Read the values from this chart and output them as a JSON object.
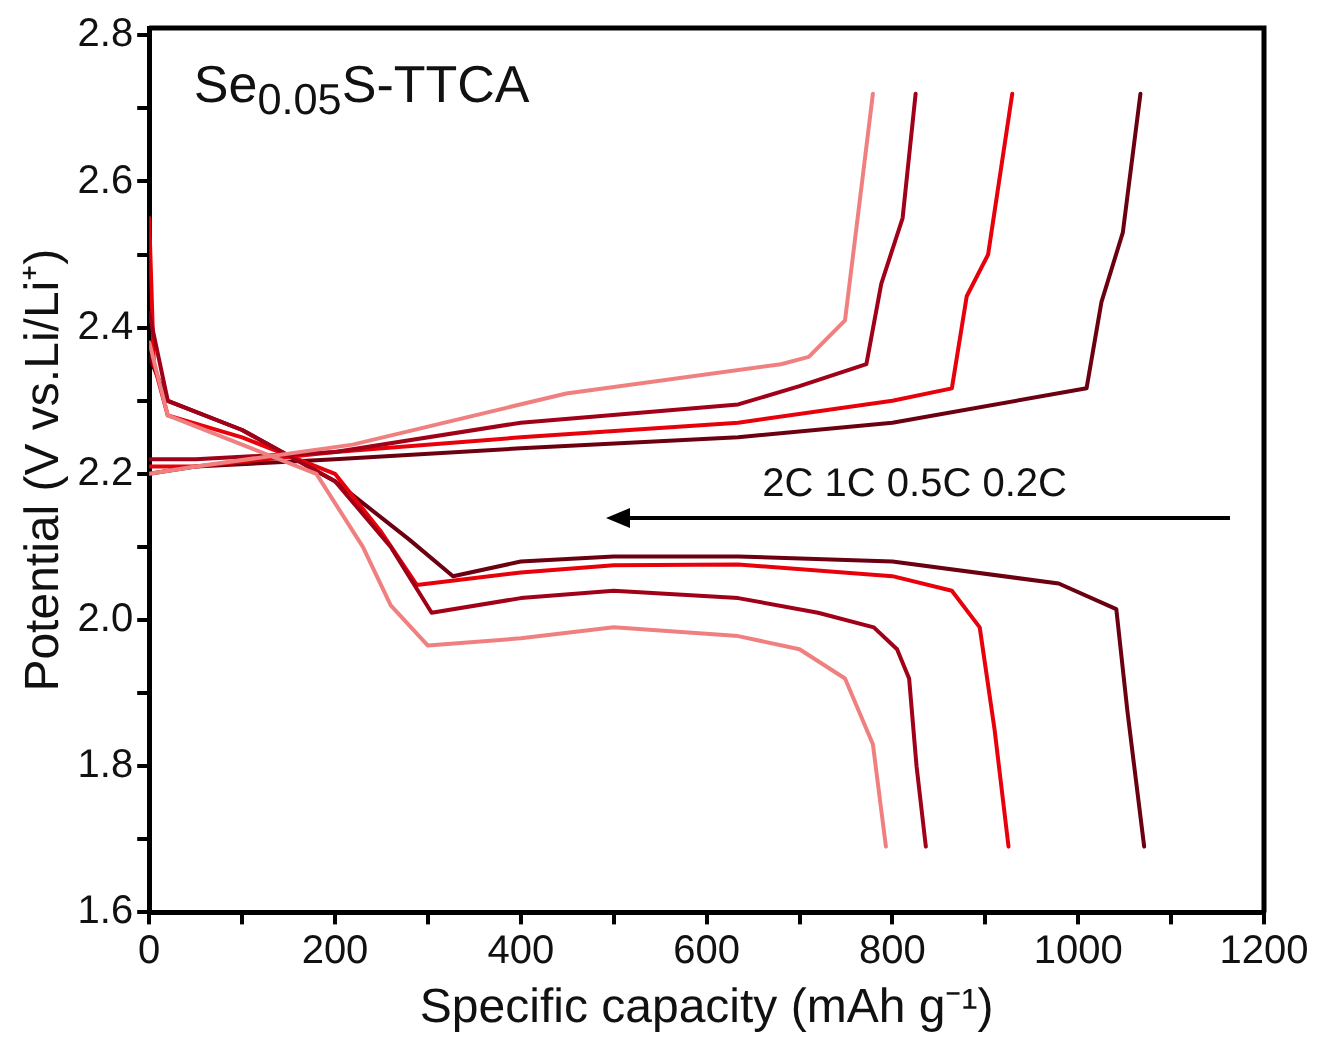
{
  "chart_data": {
    "type": "line",
    "xlabel": "Specific capacity (mAh g⁻¹)",
    "ylabel": "Potential (V vs.Li/Li⁺)",
    "annotations": [
      "Se$_{0.05}$S-TTCA",
      "2C 1C 0.5C 0.2C"
    ],
    "xlim": [
      0,
      1200
    ],
    "ylim": [
      1.6,
      2.81
    ],
    "xticks": [
      0,
      {
        "value": 100,
        "label": null
      },
      200,
      {
        "value": 300,
        "label": null
      },
      400,
      {
        "value": 500,
        "label": null
      },
      600,
      {
        "value": 700,
        "label": null
      },
      800,
      {
        "value": 900,
        "label": null
      },
      1000,
      {
        "value": 1100,
        "label": null
      },
      1200
    ],
    "yticks": [
      1.6,
      {
        "value": 1.7,
        "label": null
      },
      1.8,
      {
        "value": 1.9,
        "label": null
      },
      {
        "value": 2,
        "label": "2.0"
      },
      {
        "value": 2.1,
        "label": null
      },
      2.2,
      {
        "value": 2.3,
        "label": null
      },
      2.4,
      {
        "value": 2.5,
        "label": null
      },
      2.6,
      {
        "value": 2.7,
        "label": null
      },
      2.8
    ],
    "grid": false,
    "legend": false,
    "marker": "none",
    "line_style": "solid",
    "series": [
      {
        "color": "#f08080",
        "x": [
          0,
          20,
          100,
          180,
          230,
          260,
          300,
          400,
          500,
          634,
          700,
          749,
          779,
          793
        ],
        "values": [
          2.38,
          2.28,
          2.24,
          2.2,
          2.1,
          2.02,
          1.965,
          1.975,
          1.99,
          1.978,
          1.96,
          1.92,
          1.83,
          1.69
        ]
      },
      {
        "color": "#f08080",
        "x": [
          0,
          50,
          219,
          449,
          680,
          710,
          749,
          765,
          779
        ],
        "values": [
          2.2,
          2.21,
          2.24,
          2.31,
          2.35,
          2.36,
          2.41,
          2.575,
          2.72
        ]
      },
      {
        "color": "#a00018",
        "x": [
          0,
          20,
          100,
          200,
          260,
          304,
          400,
          500,
          634,
          720,
          780,
          805,
          818,
          826,
          836
        ],
        "values": [
          2.42,
          2.3,
          2.26,
          2.19,
          2.1,
          2.01,
          2.03,
          2.04,
          2.03,
          2.01,
          1.99,
          1.96,
          1.92,
          1.8,
          1.69
        ]
      },
      {
        "color": "#a00018",
        "x": [
          0,
          50,
          200,
          400,
          634,
          700,
          772,
          788,
          811,
          825
        ],
        "values": [
          2.22,
          2.22,
          2.23,
          2.27,
          2.295,
          2.32,
          2.35,
          2.46,
          2.55,
          2.72
        ]
      },
      {
        "color": "#e8000b",
        "x": [
          0,
          5,
          20,
          100,
          200,
          250,
          288,
          400,
          500,
          634,
          800,
          864,
          894,
          910,
          925
        ],
        "values": [
          2.55,
          2.35,
          2.28,
          2.25,
          2.2,
          2.12,
          2.048,
          2.065,
          2.075,
          2.076,
          2.06,
          2.04,
          1.99,
          1.85,
          1.69
        ]
      },
      {
        "color": "#e8000b",
        "x": [
          0,
          50,
          200,
          400,
          634,
          800,
          864,
          880,
          903,
          929
        ],
        "values": [
          2.21,
          2.21,
          2.23,
          2.25,
          2.27,
          2.3,
          2.317,
          2.443,
          2.5,
          2.72
        ]
      },
      {
        "color": "#6b0010",
        "x": [
          0,
          20,
          100,
          200,
          280,
          327,
          400,
          500,
          634,
          800,
          979,
          1041,
          1053,
          1071
        ],
        "values": [
          2.36,
          2.3,
          2.26,
          2.19,
          2.11,
          2.06,
          2.08,
          2.087,
          2.087,
          2.08,
          2.05,
          2.015,
          1.875,
          1.69
        ]
      },
      {
        "color": "#6b0010",
        "x": [
          0,
          50,
          200,
          400,
          634,
          800,
          1009,
          1025,
          1048,
          1067
        ],
        "values": [
          2.2,
          2.21,
          2.22,
          2.235,
          2.25,
          2.27,
          2.317,
          2.435,
          2.53,
          2.72
        ]
      }
    ]
  }
}
